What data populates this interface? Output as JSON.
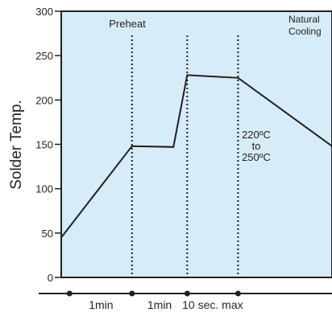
{
  "chart_data": {
    "type": "line",
    "ylabel": "Solder Temp.",
    "ylim": [
      0,
      300
    ],
    "y_ticks": [
      0,
      50,
      100,
      150,
      200,
      250,
      300
    ],
    "x_domain": [
      0,
      4.9
    ],
    "series": [
      {
        "points": [
          {
            "x": 0,
            "y": 45
          },
          {
            "x": 1.28,
            "y": 148
          },
          {
            "x": 2.03,
            "y": 147
          },
          {
            "x": 2.28,
            "y": 228
          },
          {
            "x": 3.2,
            "y": 225
          },
          {
            "x": 4.9,
            "y": 148
          }
        ]
      }
    ],
    "phase_markers": [
      1.28,
      2.28,
      3.2
    ],
    "annotations": {
      "preheat": "Preheat",
      "natural_cooling_line1": "Natural",
      "natural_cooling_line2": "Cooling",
      "peak_range_line1": "220ºC",
      "peak_range_line2": "to",
      "peak_range_line3": "250ºC"
    },
    "timeline": {
      "markers": [
        0.15,
        1.28,
        2.28,
        3.2
      ],
      "labels": [
        {
          "text": "1min",
          "at": 0.72
        },
        {
          "text": "1min",
          "at": 1.78
        },
        {
          "text": "10 sec. max",
          "at": 2.74
        }
      ]
    },
    "colors": {
      "plot_background": "#d6ecf8",
      "line": "#231f20",
      "text": "#231f20"
    }
  }
}
